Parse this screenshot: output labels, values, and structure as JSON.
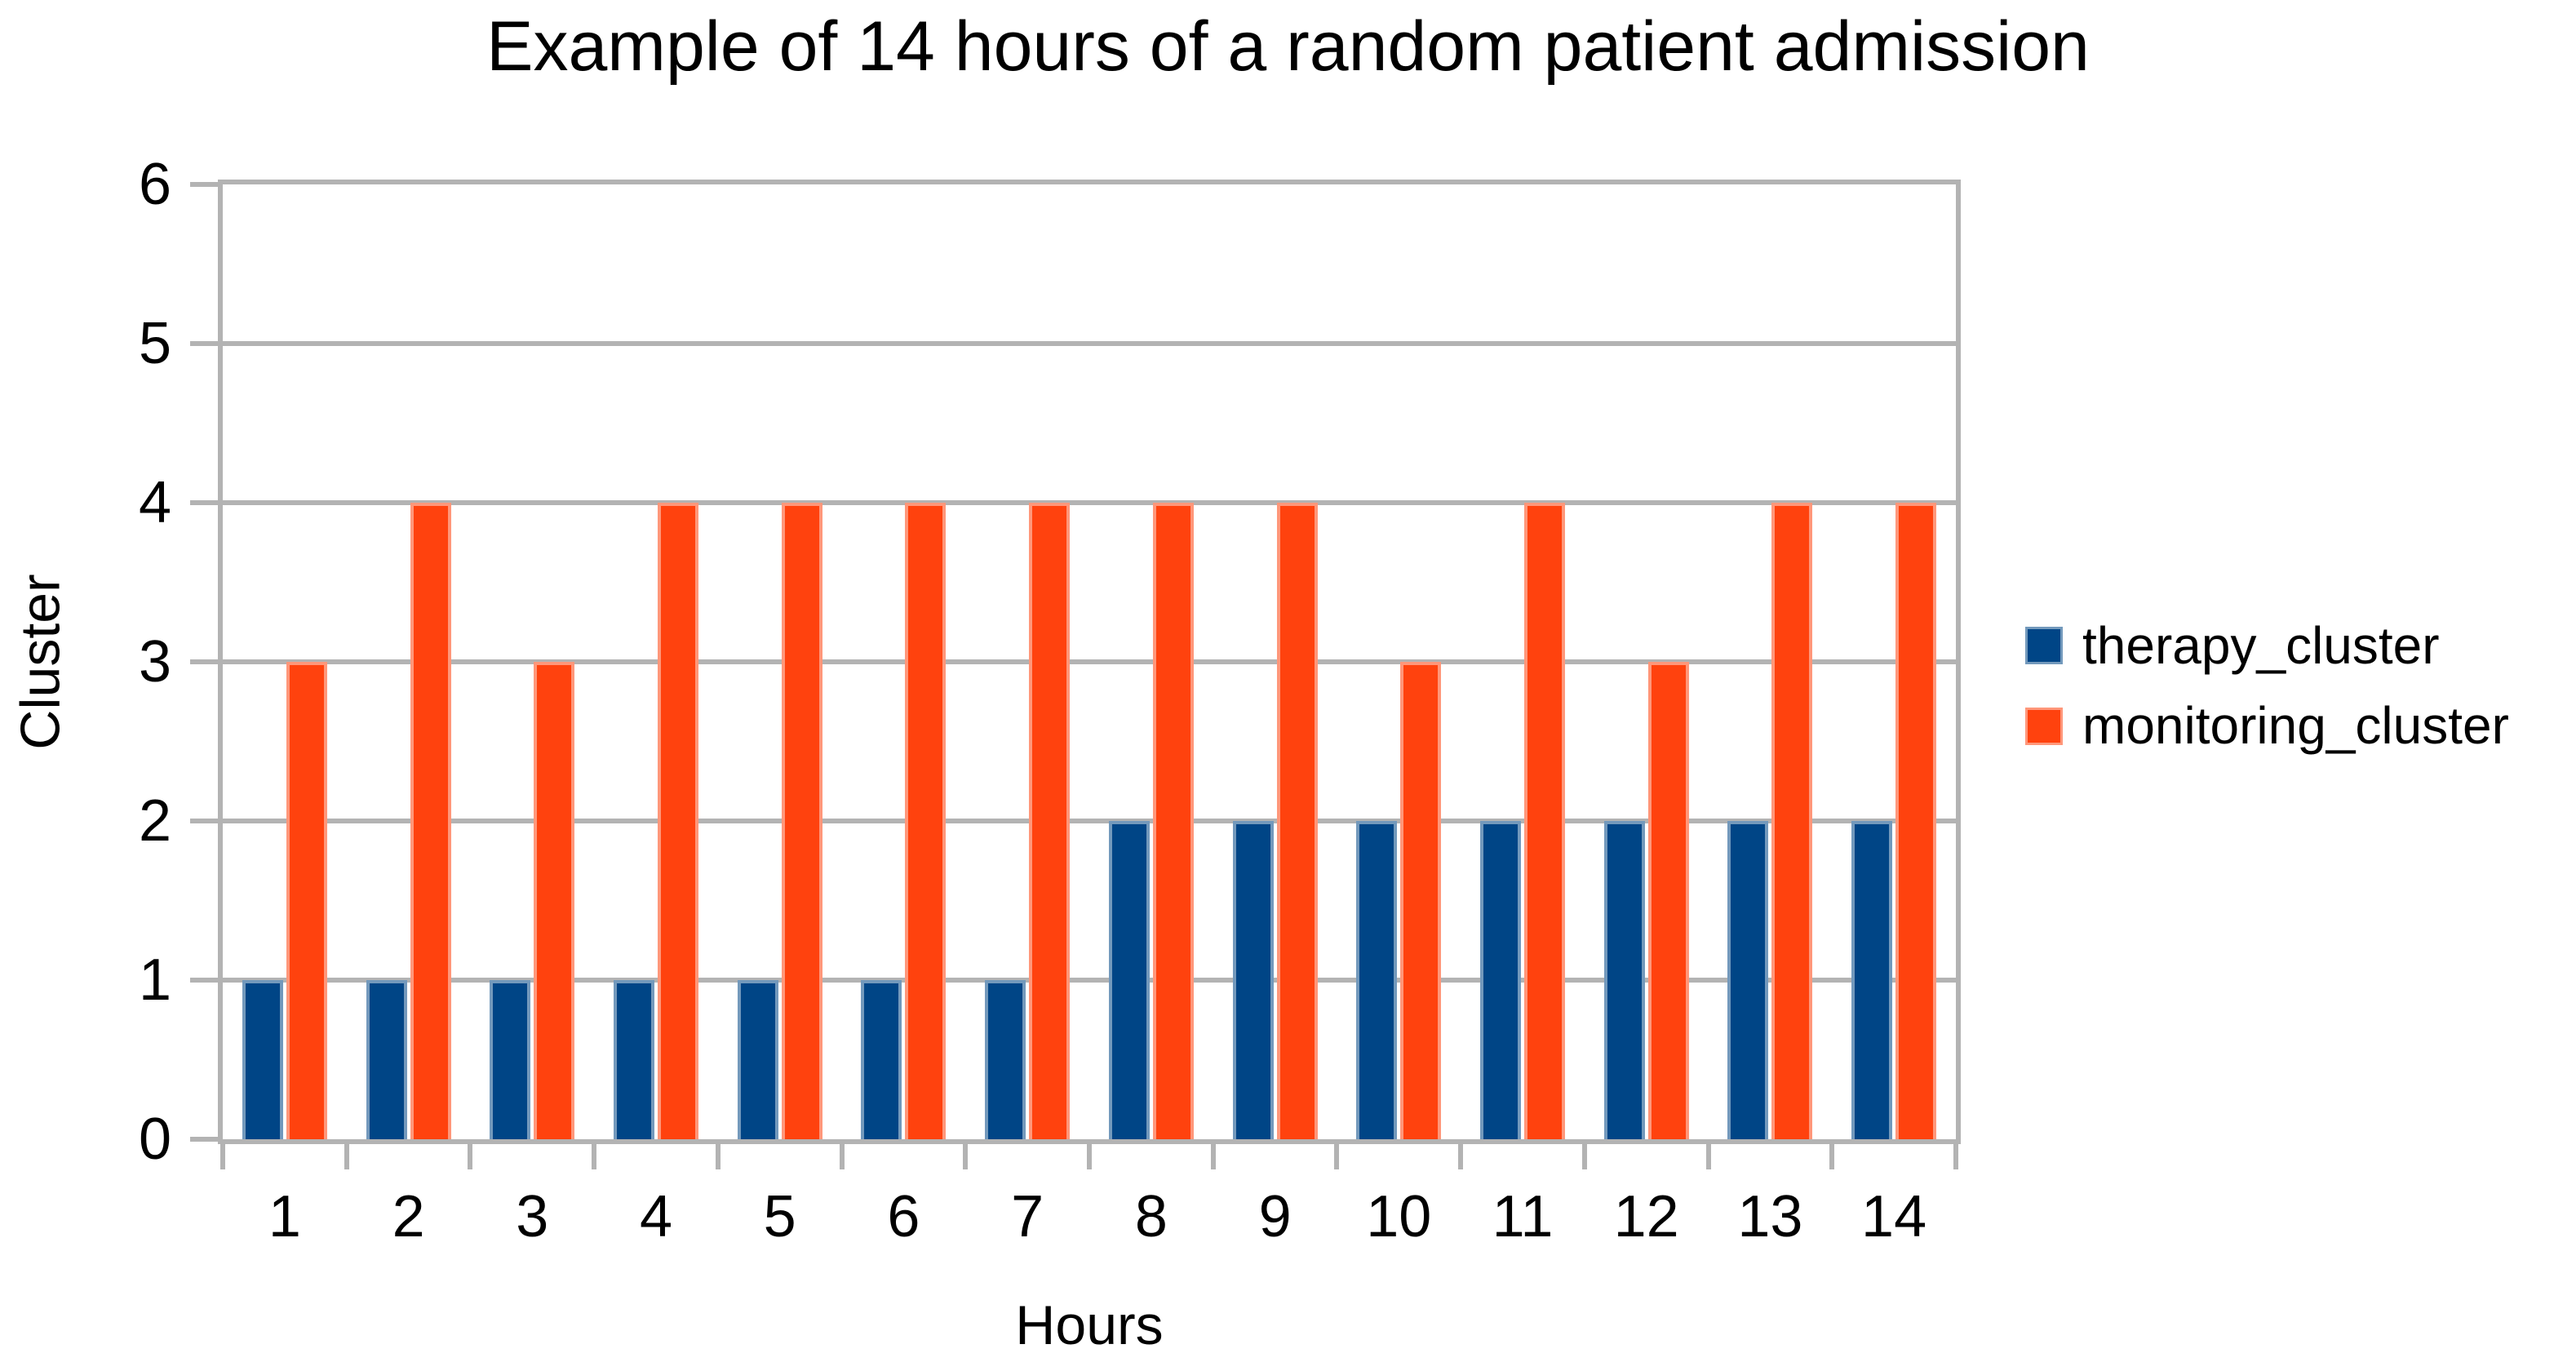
{
  "chart_data": {
    "type": "bar",
    "title": "Example of 14 hours of a random patient admission",
    "xlabel": "Hours",
    "ylabel": "Cluster",
    "categories": [
      "1",
      "2",
      "3",
      "4",
      "5",
      "6",
      "7",
      "8",
      "9",
      "10",
      "11",
      "12",
      "13",
      "14"
    ],
    "series": [
      {
        "name": "therapy_cluster",
        "color": "#004586",
        "values": [
          1,
          1,
          1,
          1,
          1,
          1,
          1,
          2,
          2,
          2,
          2,
          2,
          2,
          2
        ]
      },
      {
        "name": "monitoring_cluster",
        "color": "#FF420E",
        "values": [
          3,
          4,
          3,
          4,
          4,
          4,
          4,
          4,
          4,
          3,
          4,
          3,
          4,
          4
        ]
      }
    ],
    "ylim": [
      0,
      6
    ],
    "yticks": [
      0,
      1,
      2,
      3,
      4,
      5,
      6
    ],
    "grid": "horizontal",
    "legend_position": "right",
    "axis_color": "#b3b3b3",
    "text_color": "#000000",
    "background_color": "#ffffff"
  }
}
